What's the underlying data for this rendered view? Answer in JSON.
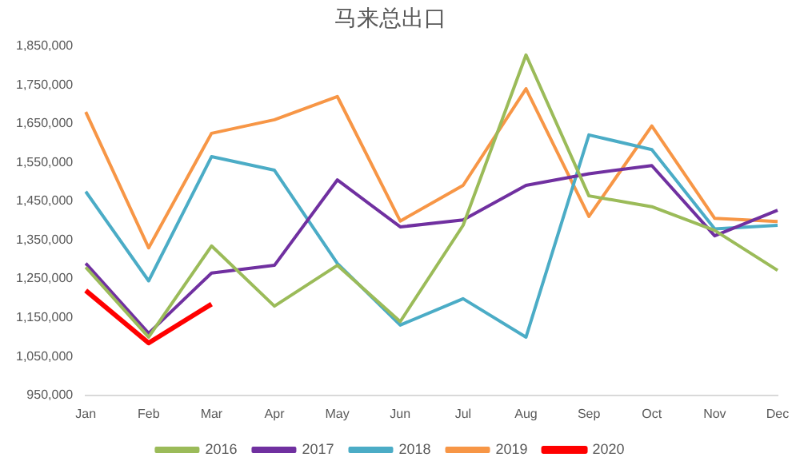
{
  "chart_data": {
    "type": "line",
    "title": "马来总出口",
    "categories": [
      "Jan",
      "Feb",
      "Mar",
      "Apr",
      "May",
      "Jun",
      "Jul",
      "Aug",
      "Sep",
      "Oct",
      "Nov",
      "Dec"
    ],
    "series": [
      {
        "name": "2016",
        "color": "#9bbb59",
        "values": [
          1280000,
          1100000,
          1335000,
          1180000,
          1285000,
          1140000,
          1388000,
          1827000,
          1464000,
          1436000,
          1375000,
          1272000
        ]
      },
      {
        "name": "2017",
        "color": "#7030a0",
        "values": [
          1290000,
          1110000,
          1265000,
          1285000,
          1505000,
          1384000,
          1402000,
          1491000,
          1521000,
          1542000,
          1361000,
          1427000
        ]
      },
      {
        "name": "2018",
        "color": "#4bacc6",
        "values": [
          1475000,
          1245000,
          1565000,
          1530000,
          1290000,
          1131000,
          1199000,
          1100000,
          1621000,
          1583000,
          1379000,
          1388000
        ]
      },
      {
        "name": "2019",
        "color": "#f79646",
        "values": [
          1680000,
          1330000,
          1625000,
          1660000,
          1720000,
          1399000,
          1491000,
          1740000,
          1411000,
          1644000,
          1406000,
          1398000
        ]
      },
      {
        "name": "2020",
        "color": "#ff0000",
        "values": [
          1220000,
          1085000,
          1185000,
          null,
          null,
          null,
          null,
          null,
          null,
          null,
          null,
          null
        ]
      }
    ],
    "ylim": [
      950000,
      1850000
    ],
    "yticks": [
      {
        "value": 950000,
        "label": "950,000"
      },
      {
        "value": 1050000,
        "label": "1,050,000"
      },
      {
        "value": 1150000,
        "label": "1,150,000"
      },
      {
        "value": 1250000,
        "label": "1,250,000"
      },
      {
        "value": 1350000,
        "label": "1,350,000"
      },
      {
        "value": 1450000,
        "label": "1,450,000"
      },
      {
        "value": 1550000,
        "label": "1,550,000"
      },
      {
        "value": 1650000,
        "label": "1,650,000"
      },
      {
        "value": 1750000,
        "label": "1,750,000"
      },
      {
        "value": 1850000,
        "label": "1,850,000"
      }
    ],
    "grid": false,
    "legend": "bottom",
    "marker": "none",
    "line_style": "solid"
  }
}
